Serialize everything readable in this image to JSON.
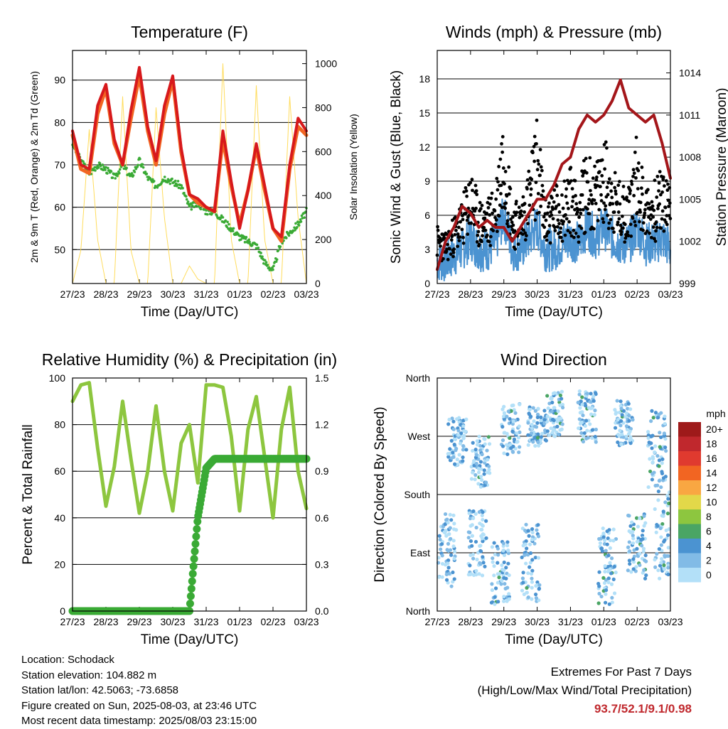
{
  "x_ticks": [
    "27/23",
    "28/23",
    "29/23",
    "30/23",
    "31/23",
    "01/23",
    "02/23",
    "03/23"
  ],
  "colors": {
    "temp_2m": "#d7191c",
    "temp_9m": "#f26522",
    "dewpoint": "#3aaa35",
    "solar": "#ffd84a",
    "gust": "#000000",
    "wind": "#4b93d1",
    "pressure": "#a4161a",
    "rh": "#8dc63f",
    "rain": "#3aaa35"
  },
  "chart_data": [
    {
      "type": "line",
      "title": "Temperature (F)",
      "xlabel": "Time (Day/UTC)",
      "ylabel": "2m & 9m T (Red, Orange) & 2m Td (Green)",
      "y2label": "Solar Insolation (Yellow)",
      "ylim": [
        42,
        97
      ],
      "y2lim": [
        0,
        1060
      ],
      "yticks": [
        50,
        60,
        70,
        80,
        90
      ],
      "y2ticks": [
        0,
        200,
        400,
        600,
        800,
        1000
      ],
      "grid": true,
      "x": [
        0,
        0.25,
        0.5,
        0.75,
        1,
        1.25,
        1.5,
        1.75,
        2,
        2.25,
        2.5,
        2.75,
        3,
        3.25,
        3.5,
        3.75,
        4,
        4.25,
        4.5,
        4.75,
        5,
        5.25,
        5.5,
        5.75,
        6,
        6.25,
        6.5,
        6.75,
        7
      ],
      "series": [
        {
          "name": "2m T",
          "axis": "left",
          "values": [
            78,
            70,
            69,
            84,
            89,
            76,
            70,
            83,
            93,
            79,
            71,
            84,
            91,
            74,
            63,
            62,
            60,
            59,
            78,
            66,
            55,
            64,
            75,
            65,
            55,
            53,
            70,
            81,
            78
          ]
        },
        {
          "name": "9m T",
          "axis": "left",
          "values": [
            77,
            69,
            68,
            82,
            88,
            75,
            70,
            81,
            91,
            78,
            70,
            82,
            90,
            73,
            63,
            61,
            60,
            59,
            76,
            65,
            56,
            64,
            74,
            64,
            55,
            52,
            69,
            79,
            77
          ]
        },
        {
          "name": "2m Td",
          "axis": "left",
          "values": [
            75,
            71,
            68,
            70,
            69,
            67,
            70,
            67,
            71,
            67,
            65,
            67,
            66,
            65,
            60,
            61,
            59,
            59,
            57,
            55,
            53,
            52,
            51,
            47,
            45,
            52,
            54,
            56,
            59
          ]
        },
        {
          "name": "Solar",
          "axis": "right",
          "values": [
            0,
            150,
            700,
            200,
            0,
            0,
            850,
            150,
            0,
            0,
            800,
            300,
            0,
            0,
            80,
            20,
            0,
            0,
            1000,
            200,
            0,
            0,
            900,
            200,
            0,
            0,
            850,
            300,
            0
          ]
        }
      ]
    },
    {
      "type": "scatter",
      "title": "Winds (mph) & Pressure (mb)",
      "xlabel": "Time (Day/UTC)",
      "ylabel": "Sonic Wind & Gust (Blue, Black)",
      "y2label": "Station Pressure (Maroon)",
      "ylim": [
        0,
        20.5
      ],
      "y2lim": [
        999,
        1015.6
      ],
      "yticks": [
        0,
        3,
        6,
        9,
        12,
        15,
        18
      ],
      "y2ticks": [
        999,
        1002,
        1005,
        1008,
        1011,
        1014
      ],
      "grid": true,
      "x": [
        0,
        0.25,
        0.5,
        0.75,
        1,
        1.25,
        1.5,
        1.75,
        2,
        2.25,
        2.5,
        2.75,
        3,
        3.25,
        3.5,
        3.75,
        4,
        4.25,
        4.5,
        4.75,
        5,
        5.25,
        5.5,
        5.75,
        6,
        6.25,
        6.5,
        6.75,
        7
      ],
      "series": [
        {
          "name": "Gust",
          "axis": "left",
          "values": [
            3.5,
            3,
            4,
            5,
            7,
            5,
            5,
            6,
            11,
            5,
            5,
            7,
            10,
            5,
            6,
            6,
            7,
            6,
            8,
            7,
            9,
            7,
            6,
            6,
            9,
            6,
            6,
            7,
            6
          ]
        },
        {
          "name": "Wind",
          "axis": "left",
          "values": [
            2,
            2,
            2.5,
            3,
            4,
            3,
            3,
            3.5,
            6,
            3,
            3,
            4,
            5,
            3,
            3,
            3.5,
            4,
            3.5,
            5,
            4,
            5,
            4,
            3.5,
            3.5,
            5,
            3.5,
            3.5,
            4,
            3
          ]
        },
        {
          "name": "Pressure",
          "axis": "right",
          "values": [
            1000,
            1002,
            1003,
            1004.5,
            1004,
            1003,
            1003.5,
            1003,
            1003,
            1002,
            1003,
            1004,
            1005,
            1005,
            1006,
            1007.5,
            1008,
            1010,
            1011,
            1010.5,
            1011,
            1012,
            1013.5,
            1011.5,
            1011,
            1010.5,
            1011,
            1009,
            1006.5
          ]
        }
      ]
    },
    {
      "type": "line",
      "title": "Relative Humidity (%) & Precipitation (in)",
      "xlabel": "Time (Day/UTC)",
      "ylabel": "Percent & Total Rainfall",
      "ylim": [
        0,
        100
      ],
      "y2lim": [
        0,
        1.5
      ],
      "yticks": [
        0,
        20,
        40,
        60,
        80,
        100
      ],
      "y2ticks": [
        "0.0",
        "0.3",
        "0.6",
        "0.9",
        "1.2",
        "1.5"
      ],
      "grid": true,
      "x": [
        0,
        0.25,
        0.5,
        0.75,
        1,
        1.25,
        1.5,
        1.75,
        2,
        2.25,
        2.5,
        2.75,
        3,
        3.25,
        3.5,
        3.75,
        4,
        4.25,
        4.5,
        4.75,
        5,
        5.25,
        5.5,
        5.75,
        6,
        6.25,
        6.5,
        6.75,
        7
      ],
      "series": [
        {
          "name": "RH",
          "axis": "left",
          "values": [
            90,
            97,
            98,
            70,
            45,
            62,
            90,
            65,
            42,
            60,
            88,
            60,
            43,
            72,
            80,
            55,
            97,
            97,
            96,
            75,
            43,
            78,
            92,
            66,
            40,
            78,
            96,
            60,
            44
          ]
        },
        {
          "name": "Precipitation",
          "axis": "right",
          "values": [
            0,
            0,
            0,
            0,
            0,
            0,
            0,
            0,
            0,
            0,
            0,
            0,
            0,
            0,
            0,
            0.6,
            0.92,
            0.98,
            0.98,
            0.98,
            0.98,
            0.98,
            0.98,
            0.98,
            0.98,
            0.98,
            0.98,
            0.98,
            0.98
          ]
        }
      ]
    },
    {
      "type": "scatter",
      "title": "Wind Direction",
      "xlabel": "Time (Day/UTC)",
      "ylabel": "Direction (Colored By Speed)",
      "y_categories": [
        "North",
        "East",
        "South",
        "West",
        "North"
      ],
      "ylim": [
        0,
        360
      ],
      "grid": true,
      "legend": {
        "title": "mph",
        "placement": "right",
        "labels": [
          "20+",
          "18",
          "16",
          "14",
          "12",
          "10",
          "8",
          "6",
          "4",
          "2",
          "0"
        ],
        "colors": [
          "#9e1a1a",
          "#c0282d",
          "#e03a2f",
          "#f26522",
          "#f9a742",
          "#e2d849",
          "#8dc63f",
          "#4aa564",
          "#4b93d1",
          "#82bbe6",
          "#b3e0f8"
        ]
      },
      "clusters": [
        {
          "x": 0.3,
          "dir": 90,
          "spread": 60
        },
        {
          "x": 0.6,
          "dir": 260,
          "spread": 40
        },
        {
          "x": 1.2,
          "dir": 105,
          "spread": 50
        },
        {
          "x": 1.3,
          "dir": 230,
          "spread": 40
        },
        {
          "x": 1.9,
          "dir": 60,
          "spread": 50
        },
        {
          "x": 2.2,
          "dir": 280,
          "spread": 40
        },
        {
          "x": 2.8,
          "dir": 75,
          "spread": 60
        },
        {
          "x": 3.0,
          "dir": 285,
          "spread": 30
        },
        {
          "x": 3.5,
          "dir": 305,
          "spread": 35
        },
        {
          "x": 4.5,
          "dir": 300,
          "spread": 40
        },
        {
          "x": 5.1,
          "dir": 70,
          "spread": 60
        },
        {
          "x": 5.6,
          "dir": 290,
          "spread": 35
        },
        {
          "x": 6.0,
          "dir": 100,
          "spread": 50
        },
        {
          "x": 6.6,
          "dir": 250,
          "spread": 60
        },
        {
          "x": 6.8,
          "dir": 120,
          "spread": 70
        }
      ]
    }
  ],
  "info": {
    "location": "Location: Schodack",
    "elevation": "Station elevation: 104.882 m",
    "latlon": "Station lat/lon: 42.5063; -73.6858",
    "created": "Figure created on Sun, 2025-08-03, at 23:46 UTC",
    "recent": "Most recent data timestamp: 2025/08/03 23:15:00"
  },
  "extremes": {
    "title": "Extremes For Past 7 Days",
    "subtitle": "(High/Low/Max Wind/Total Precipitation)",
    "values": "93.7/52.1/9.1/0.98"
  }
}
